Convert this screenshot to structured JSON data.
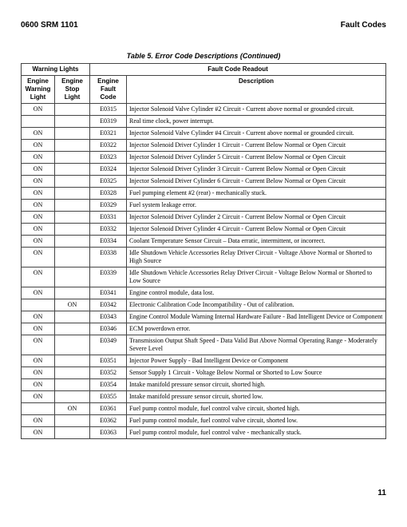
{
  "header": {
    "left": "0600 SRM 1101",
    "right": "Fault Codes"
  },
  "caption": "Table 5. Error Code Descriptions (Continued)",
  "page_number": "11",
  "columns": {
    "group1": "Warning Lights",
    "group2": "Fault Code Readout",
    "ewl": "Engine Warning Light",
    "esl": "Engine Stop Light",
    "efc": "Engine Fault Code",
    "desc": "Description"
  },
  "rows": [
    {
      "ewl": "ON",
      "esl": "",
      "efc": "E0315",
      "desc": "Injector Solenoid Valve Cylinder #2 Circuit - Current above normal or grounded circuit."
    },
    {
      "ewl": "",
      "esl": "",
      "efc": "E0319",
      "desc": "Real time clock, power interrupt."
    },
    {
      "ewl": "ON",
      "esl": "",
      "efc": "E0321",
      "desc": "Injector Solenoid Valve Cylinder #4 Circuit - Current above normal or grounded circuit."
    },
    {
      "ewl": "ON",
      "esl": "",
      "efc": "E0322",
      "desc": "Injector Solenoid Driver Cylinder 1 Circuit - Current Below Normal or Open Circuit"
    },
    {
      "ewl": "ON",
      "esl": "",
      "efc": "E0323",
      "desc": "Injector Solenoid Driver Cylinder 5 Circuit - Current Below Normal or Open Circuit"
    },
    {
      "ewl": "ON",
      "esl": "",
      "efc": "E0324",
      "desc": "Injector Solenoid Driver Cylinder 3 Circuit - Current Below Normal or Open Circuit"
    },
    {
      "ewl": "ON",
      "esl": "",
      "efc": "E0325",
      "desc": "Injector Solenoid Driver Cylinder 6 Circuit - Current Below Normal or Open Circuit"
    },
    {
      "ewl": "ON",
      "esl": "",
      "efc": "E0328",
      "desc": "Fuel pumping element #2 (rear) - mechanically stuck."
    },
    {
      "ewl": "ON",
      "esl": "",
      "efc": "E0329",
      "desc": "Fuel system leakage error."
    },
    {
      "ewl": "ON",
      "esl": "",
      "efc": "E0331",
      "desc": "Injector Solenoid Driver Cylinder 2 Circuit - Current Below Normal or Open Circuit"
    },
    {
      "ewl": "ON",
      "esl": "",
      "efc": "E0332",
      "desc": "Injector Solenoid Driver Cylinder 4 Circuit - Current Below Normal or Open Circuit"
    },
    {
      "ewl": "ON",
      "esl": "",
      "efc": "E0334",
      "desc": "Coolant Temperature Sensor Circuit – Data erratic, intermittent, or incorrect."
    },
    {
      "ewl": "ON",
      "esl": "",
      "efc": "E0338",
      "desc": "Idle Shutdown Vehicle Accessories Relay Driver Circuit - Voltage Above Normal or Shorted to High Source"
    },
    {
      "ewl": "ON",
      "esl": "",
      "efc": "E0339",
      "desc": "Idle Shutdown Vehicle Accessories Relay Driver Circuit - Voltage Below Normal or Shorted to Low Source"
    },
    {
      "ewl": "ON",
      "esl": "",
      "efc": "E0341",
      "desc": "Engine control module, data lost."
    },
    {
      "ewl": "",
      "esl": "ON",
      "efc": "E0342",
      "desc": "Electronic Calibration Code Incompatibility - Out of calibration."
    },
    {
      "ewl": "ON",
      "esl": "",
      "efc": "E0343",
      "desc": "Engine Control Module Warning Internal Hardware Failure - Bad Intelligent Device or Component"
    },
    {
      "ewl": "ON",
      "esl": "",
      "efc": "E0346",
      "desc": "ECM powerdown error."
    },
    {
      "ewl": "ON",
      "esl": "",
      "efc": "E0349",
      "desc": "Transmission Output Shaft Speed - Data Valid But Above Normal Operating Range - Moderately Severe Level"
    },
    {
      "ewl": "ON",
      "esl": "",
      "efc": "E0351",
      "desc": "Injector Power Supply - Bad Intelligent Device or Component"
    },
    {
      "ewl": "ON",
      "esl": "",
      "efc": "E0352",
      "desc": "Sensor Supply 1 Circuit - Voltage Below Normal or Shorted to Low Source"
    },
    {
      "ewl": "ON",
      "esl": "",
      "efc": "E0354",
      "desc": "Intake manifold pressure sensor circuit, shorted high."
    },
    {
      "ewl": "ON",
      "esl": "",
      "efc": "E0355",
      "desc": "Intake manifold pressure sensor circuit, shorted low."
    },
    {
      "ewl": "",
      "esl": "ON",
      "efc": "E0361",
      "desc": "Fuel pump control module, fuel control valve circuit, shorted high."
    },
    {
      "ewl": "ON",
      "esl": "",
      "efc": "E0362",
      "desc": "Fuel pump control module, fuel control valve circuit, shorted low."
    },
    {
      "ewl": "ON",
      "esl": "",
      "efc": "E0363",
      "desc": "Fuel pump control module, fuel control valve - mechanically stuck."
    }
  ]
}
